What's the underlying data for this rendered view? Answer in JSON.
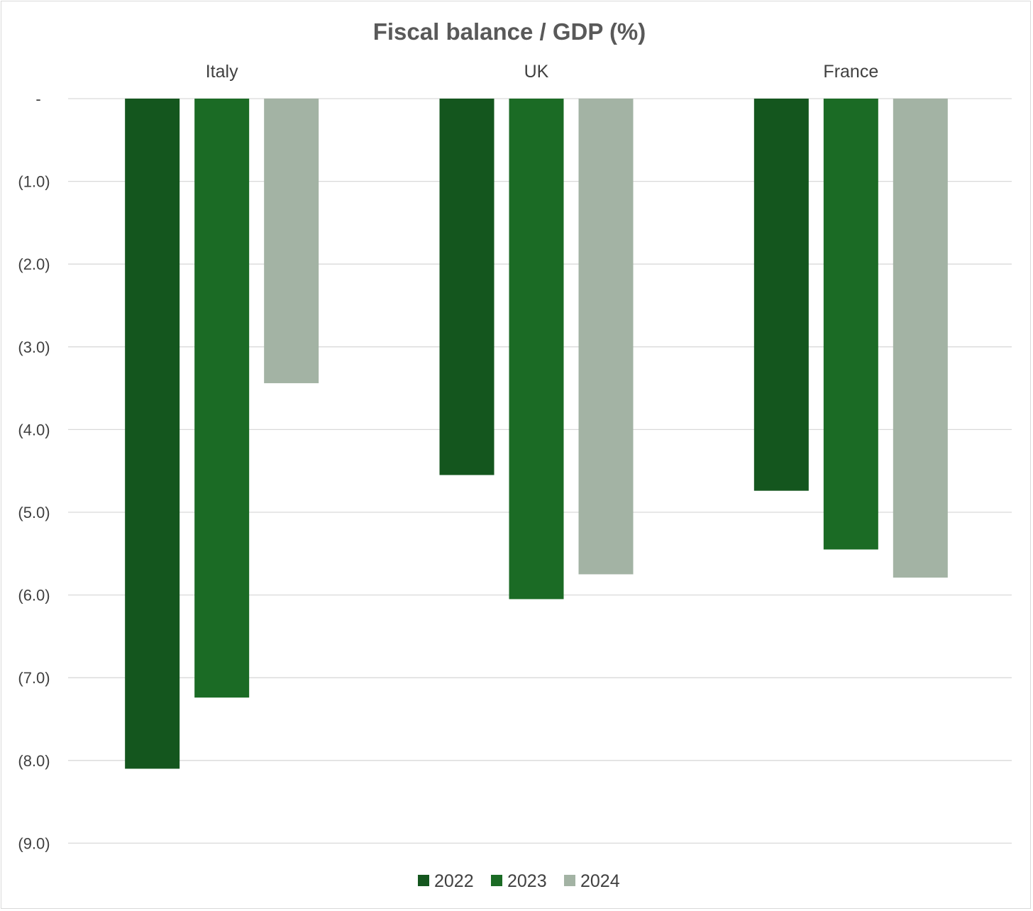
{
  "chart_data": {
    "type": "bar",
    "title": "Fiscal balance / GDP (%)",
    "categories": [
      "Italy",
      "UK",
      "France"
    ],
    "series": [
      {
        "name": "2022",
        "values": [
          -8.1,
          -4.55,
          -4.74
        ],
        "color": "#14561e"
      },
      {
        "name": "2023",
        "values": [
          -7.24,
          -6.05,
          -5.45
        ],
        "color": "#1b6b25"
      },
      {
        "name": "2024",
        "values": [
          -3.44,
          -5.75,
          -5.79
        ],
        "color": "#a3b3a4"
      }
    ],
    "y_ticks": [
      {
        "value": 0,
        "label": "-"
      },
      {
        "value": -1,
        "label": "(1.0)"
      },
      {
        "value": -2,
        "label": "(2.0)"
      },
      {
        "value": -3,
        "label": "(3.0)"
      },
      {
        "value": -4,
        "label": "(4.0)"
      },
      {
        "value": -5,
        "label": "(5.0)"
      },
      {
        "value": -6,
        "label": "(6.0)"
      },
      {
        "value": -7,
        "label": "(7.0)"
      },
      {
        "value": -8,
        "label": "(8.0)"
      },
      {
        "value": -9,
        "label": "(9.0)"
      }
    ],
    "ylim": [
      -9,
      0
    ],
    "xlabel": "",
    "ylabel": "",
    "grid": true,
    "legend_position": "bottom-center",
    "category_label_position": "top"
  }
}
